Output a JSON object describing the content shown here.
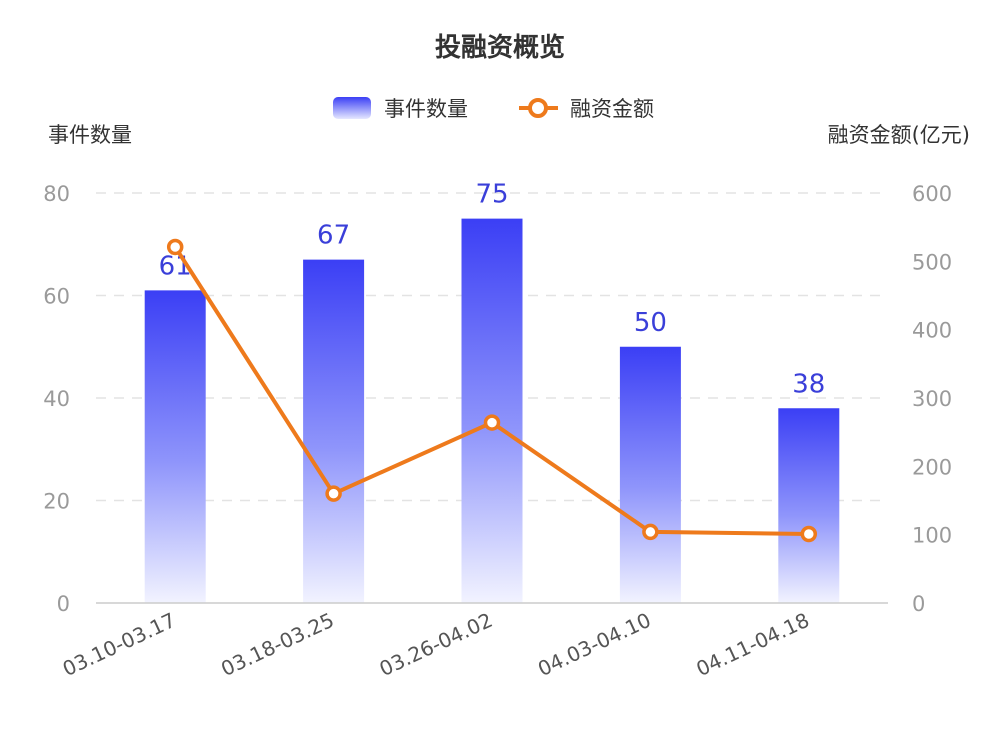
{
  "chart_data": {
    "type": "bar",
    "title": "投融资概览",
    "categories": [
      "03.10-03.17",
      "03.18-03.25",
      "03.26-04.02",
      "04.03-04.10",
      "04.11-04.18"
    ],
    "series": [
      {
        "name": "事件数量",
        "type": "bar",
        "axis": "left",
        "values": [
          61,
          67,
          75,
          50,
          38
        ],
        "color": "#3b3ff5",
        "show_labels": true
      },
      {
        "name": "融资金额",
        "type": "line",
        "axis": "right",
        "values": [
          521,
          160,
          264,
          104,
          101
        ],
        "color": "#ee7a1c"
      }
    ],
    "y_left": {
      "label": "事件数量",
      "range": [
        0,
        80
      ],
      "ticks": [
        0,
        20,
        40,
        60,
        80
      ]
    },
    "y_right": {
      "label": "融资金额(亿元)",
      "range": [
        0,
        600
      ],
      "ticks": [
        0,
        100,
        200,
        300,
        400,
        500,
        600
      ]
    },
    "grid": true,
    "legend_position": "top-center",
    "xlabel": ""
  }
}
